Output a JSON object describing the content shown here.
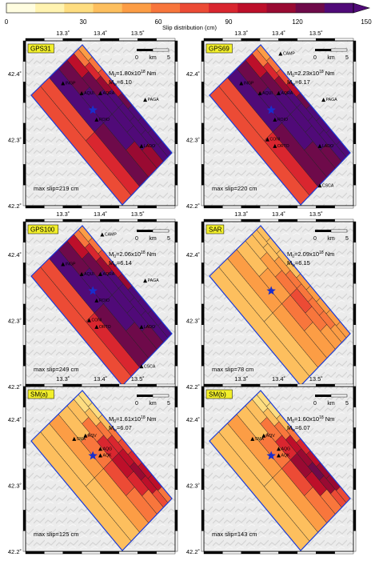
{
  "colorbar": {
    "ticks": [
      "0",
      "30",
      "60",
      "90",
      "120",
      "150"
    ],
    "label": "Slip distribution (cm)",
    "min": 0,
    "max": 150,
    "colors": [
      "#fffde0",
      "#fff3b0",
      "#fedd80",
      "#fdbf5e",
      "#fc9d45",
      "#f8763c",
      "#ec4b35",
      "#d9262f",
      "#bd0f2a",
      "#990a32",
      "#6e0a4a",
      "#500a78"
    ]
  },
  "axes": {
    "lon_ticks": [
      "13.3˚",
      "13.4˚",
      "13.5˚"
    ],
    "lat_ticks": [
      "42.4˚",
      "42.3˚",
      "42.2˚"
    ],
    "lon_values": [
      13.3,
      13.4,
      13.5
    ],
    "lat_values": [
      42.4,
      42.3,
      42.2
    ],
    "lon_range": [
      13.2,
      13.6
    ],
    "lat_range": [
      42.2,
      42.45
    ]
  },
  "scale": {
    "zero": "0",
    "unit": "km",
    "five": "5"
  },
  "stations": [
    {
      "name": "CAMP",
      "lon": 13.405,
      "lat": 42.43
    },
    {
      "name": "INGP",
      "lon": 13.3,
      "lat": 42.385
    },
    {
      "name": "AQUI",
      "lon": 13.35,
      "lat": 42.37
    },
    {
      "name": "AQRA",
      "lon": 13.4,
      "lat": 42.37
    },
    {
      "name": "PAGA",
      "lon": 13.52,
      "lat": 42.36
    },
    {
      "name": "ROIO",
      "lon": 13.39,
      "lat": 42.33
    },
    {
      "name": "CONI",
      "lon": 13.37,
      "lat": 42.3
    },
    {
      "name": "ORTO",
      "lon": 13.39,
      "lat": 42.29
    },
    {
      "name": "LADO",
      "lon": 13.51,
      "lat": 42.29
    },
    {
      "name": "CSCA",
      "lon": 13.51,
      "lat": 42.23
    },
    {
      "name": "SMA",
      "lon": 13.33,
      "lat": 42.37
    },
    {
      "name": "AQV",
      "lon": 13.36,
      "lat": 42.375
    },
    {
      "name": "AQG",
      "lon": 13.4,
      "lat": 42.355
    },
    {
      "name": "AQK",
      "lon": 13.4,
      "lat": 42.345
    }
  ],
  "hypocenter": {
    "lon": 13.38,
    "lat": 42.345
  },
  "chart_data": [
    {
      "type": "heatmap",
      "label": "GPS31",
      "m0_mantissa": "1.80",
      "m0_exponent": "18",
      "mw": "6.10",
      "max_slip": "max slip=219 cm",
      "stations": [
        "INGP",
        "AQUI",
        "AQRA",
        "PAGA",
        "ROIO",
        "LADO"
      ],
      "rows": [
        [
          4,
          5,
          6,
          8,
          10,
          12,
          13,
          14,
          15
        ],
        [
          5,
          7,
          9,
          11,
          12,
          13,
          13,
          12
        ],
        [
          8,
          10,
          12,
          12,
          11,
          9
        ],
        [
          10,
          12,
          11,
          9
        ],
        [
          11,
          10
        ],
        [
          6,
          7
        ],
        [
          6
        ]
      ]
    },
    {
      "type": "heatmap",
      "label": "GPS69",
      "m0_mantissa": "2.23",
      "m0_exponent": "18",
      "mw": "6.17",
      "max_slip": "max slip=220 cm",
      "stations": [
        "CAMP",
        "INGP",
        "AQUI",
        "AQRA",
        "PAGA",
        "ROIO",
        "CONI",
        "ORTO",
        "LADO",
        "CSCA"
      ],
      "rows": [
        [
          4,
          5,
          6,
          8,
          10,
          12,
          13,
          14,
          15
        ],
        [
          5,
          7,
          9,
          11,
          12,
          13,
          13,
          12
        ],
        [
          8,
          10,
          12,
          13,
          12,
          10
        ],
        [
          10,
          12,
          12,
          10
        ],
        [
          11,
          10
        ],
        [
          6,
          7
        ],
        [
          6
        ]
      ]
    },
    {
      "type": "heatmap",
      "label": "GPS100",
      "m0_mantissa": "2.06",
      "m0_exponent": "18",
      "mw": "6.14",
      "max_slip": "max slip=249 cm",
      "stations": [
        "CAMP",
        "INGP",
        "AQUI",
        "AQRA",
        "PAGA",
        "ROIO",
        "CONI",
        "ORTO",
        "LADO",
        "CSCA"
      ],
      "rows": [
        [
          4,
          5,
          6,
          8,
          9,
          12,
          13,
          14,
          15
        ],
        [
          5,
          7,
          9,
          11,
          12,
          13,
          13,
          12
        ],
        [
          8,
          10,
          12,
          13,
          12,
          10
        ],
        [
          10,
          12,
          12,
          10
        ],
        [
          11,
          10
        ],
        [
          6,
          7
        ],
        [
          6
        ]
      ]
    },
    {
      "type": "heatmap",
      "label": "SAR",
      "m0_mantissa": "2.09",
      "m0_exponent": "18",
      "mw": "6.15",
      "max_slip": "max slip=78 cm",
      "stations": [],
      "rows": [
        [
          3,
          3,
          3,
          3,
          4,
          4,
          4,
          4,
          4
        ],
        [
          3,
          3,
          4,
          5,
          5,
          5,
          5,
          4
        ],
        [
          3,
          4,
          5,
          6,
          5,
          4
        ],
        [
          3,
          4,
          5,
          4
        ],
        [
          4,
          4
        ],
        [
          3,
          3
        ],
        [
          3
        ]
      ]
    },
    {
      "type": "heatmap",
      "label": "SM(a)",
      "m0_mantissa": "1.61",
      "m0_exponent": "18",
      "mw": "6.07",
      "max_slip": "max slip=125 cm",
      "stations": [
        "SMA",
        "AQV",
        "AQG",
        "AQK"
      ],
      "rows": [
        [
          2,
          2,
          3,
          5,
          6,
          7,
          8,
          8,
          5
        ],
        [
          2,
          3,
          5,
          7,
          8,
          9,
          8,
          6
        ],
        [
          3,
          5,
          7,
          8,
          7,
          5
        ],
        [
          3,
          5,
          6,
          5
        ],
        [
          4,
          4
        ],
        [
          3,
          3
        ],
        [
          3
        ]
      ]
    },
    {
      "type": "heatmap",
      "label": "SM(b)",
      "m0_mantissa": "1.60",
      "m0_exponent": "18",
      "mw": "6.07",
      "max_slip": "max slip=143 cm",
      "stations": [
        "SMA",
        "AQV",
        "AQG",
        "AQK"
      ],
      "rows": [
        [
          2,
          2,
          3,
          5,
          7,
          8,
          9,
          9,
          6
        ],
        [
          2,
          3,
          5,
          8,
          9,
          10,
          9,
          6
        ],
        [
          3,
          5,
          7,
          9,
          8,
          5
        ],
        [
          3,
          5,
          6,
          5
        ],
        [
          4,
          4
        ],
        [
          3,
          3
        ],
        [
          3
        ]
      ]
    }
  ]
}
